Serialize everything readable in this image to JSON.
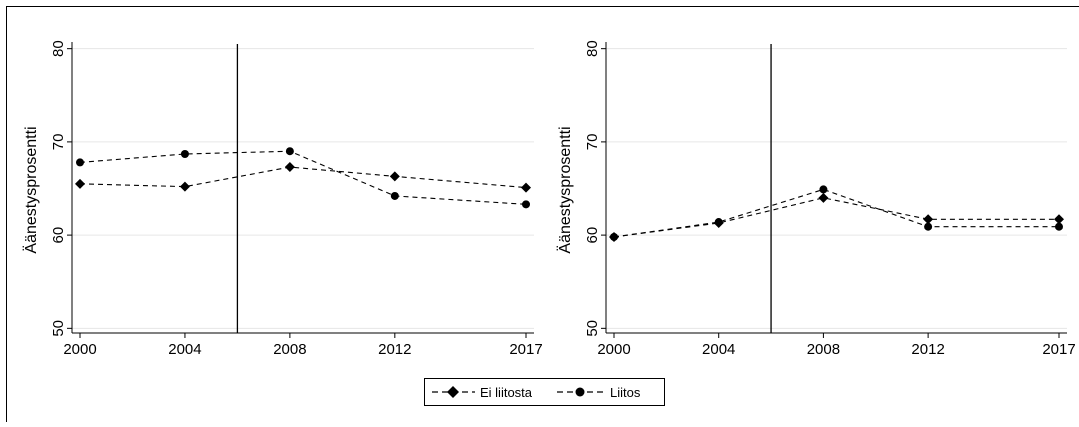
{
  "chart_data": [
    {
      "type": "line",
      "xlabel": "",
      "ylabel": "Äänestysprosentti",
      "x": [
        2000,
        2004,
        2008,
        2012,
        2017
      ],
      "xticks": [
        "2000",
        "2004",
        "2008",
        "2012",
        "2017"
      ],
      "ylim": [
        49.5,
        80.5
      ],
      "yticks": [
        "50",
        "60",
        "70",
        "80"
      ],
      "grid": true,
      "vline": 2006,
      "series": [
        {
          "name": "Ei liitosta",
          "marker": "diamond",
          "values": [
            65.5,
            65.2,
            67.3,
            66.3,
            65.1
          ]
        },
        {
          "name": "Liitos",
          "marker": "circle",
          "values": [
            67.8,
            68.7,
            69.0,
            64.2,
            63.3
          ]
        }
      ]
    },
    {
      "type": "line",
      "xlabel": "",
      "ylabel": "Äänestysprosentti",
      "x": [
        2000,
        2004,
        2008,
        2012,
        2017
      ],
      "xticks": [
        "2000",
        "2004",
        "2008",
        "2012",
        "2017"
      ],
      "ylim": [
        49.5,
        80.5
      ],
      "yticks": [
        "50",
        "60",
        "70",
        "80"
      ],
      "grid": true,
      "vline": 2006,
      "series": [
        {
          "name": "Ei liitosta",
          "marker": "diamond",
          "values": [
            59.8,
            61.3,
            64.0,
            61.7,
            61.7
          ]
        },
        {
          "name": "Liitos",
          "marker": "circle",
          "values": [
            59.8,
            61.4,
            64.9,
            60.9,
            60.9
          ]
        }
      ]
    }
  ],
  "legend": {
    "placement": "bottom-center",
    "items": [
      "Ei liitosta",
      "Liitos"
    ]
  },
  "colors": {
    "line": "#000000",
    "grid": "#e6e6e6",
    "background": "#ffffff"
  }
}
